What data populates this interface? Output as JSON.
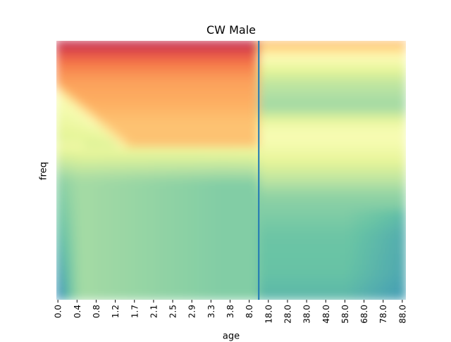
{
  "chart_data": {
    "type": "heatmap",
    "title": "CW Male",
    "xlabel": "age",
    "ylabel": "freq",
    "colormap": "Spectral",
    "x_tick_labels": [
      "0.0",
      "0.4",
      "0.8",
      "1.2",
      "1.7",
      "2.1",
      "2.5",
      "2.9",
      "3.3",
      "3.8",
      "8.0",
      "18.0",
      "28.0",
      "38.0",
      "48.0",
      "58.0",
      "68.0",
      "78.0",
      "88.0"
    ],
    "y_tick_labels": [],
    "vertical_marker": {
      "after_tick": "8.0",
      "color": "#1f77b4"
    },
    "colorbar": false
  }
}
